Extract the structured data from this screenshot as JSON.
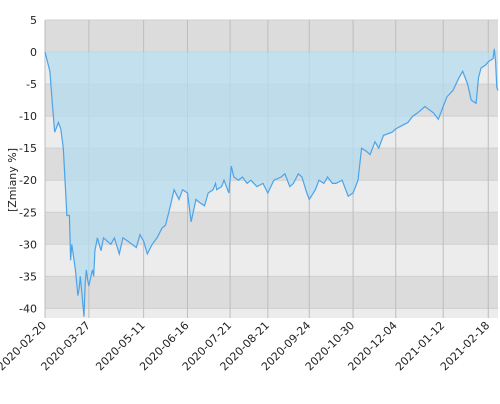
{
  "chart_data": {
    "type": "area",
    "y_label": "[Zmiany %]",
    "x": [
      "2020-02-20",
      "2020-02-24",
      "2020-02-26",
      "2020-02-28",
      "2020-03-02",
      "2020-03-04",
      "2020-03-06",
      "2020-03-09",
      "2020-03-11",
      "2020-03-12",
      "2020-03-13",
      "2020-03-16",
      "2020-03-18",
      "2020-03-19",
      "2020-03-20",
      "2020-03-23",
      "2020-03-24",
      "2020-03-25",
      "2020-03-26",
      "2020-03-27",
      "2020-03-30",
      "2020-03-31",
      "2020-04-01",
      "2020-04-03",
      "2020-04-06",
      "2020-04-08",
      "2020-04-14",
      "2020-04-17",
      "2020-04-21",
      "2020-04-24",
      "2020-04-28",
      "2020-05-05",
      "2020-05-08",
      "2020-05-11",
      "2020-05-14",
      "2020-05-18",
      "2020-05-22",
      "2020-05-26",
      "2020-05-29",
      "2020-06-02",
      "2020-06-05",
      "2020-06-09",
      "2020-06-12",
      "2020-06-16",
      "2020-06-19",
      "2020-06-23",
      "2020-06-26",
      "2020-06-30",
      "2020-07-03",
      "2020-07-07",
      "2020-07-09",
      "2020-07-10",
      "2020-07-14",
      "2020-07-16",
      "2020-07-20",
      "2020-07-22",
      "2020-07-24",
      "2020-07-28",
      "2020-07-31",
      "2020-08-04",
      "2020-08-07",
      "2020-08-12",
      "2020-08-17",
      "2020-08-21",
      "2020-08-26",
      "2020-09-01",
      "2020-09-04",
      "2020-09-08",
      "2020-09-11",
      "2020-09-15",
      "2020-09-18",
      "2020-09-22",
      "2020-09-24",
      "2020-09-29",
      "2020-10-02",
      "2020-10-06",
      "2020-10-09",
      "2020-10-13",
      "2020-10-16",
      "2020-10-21",
      "2020-10-26",
      "2020-10-30",
      "2020-11-03",
      "2020-11-06",
      "2020-11-10",
      "2020-11-13",
      "2020-11-17",
      "2020-11-20",
      "2020-11-24",
      "2020-12-01",
      "2020-12-04",
      "2020-12-09",
      "2020-12-14",
      "2020-12-18",
      "2020-12-22",
      "2020-12-28",
      "2021-01-04",
      "2021-01-08",
      "2021-01-12",
      "2021-01-15",
      "2021-01-20",
      "2021-01-25",
      "2021-01-28",
      "2021-02-01",
      "2021-02-04",
      "2021-02-08",
      "2021-02-10",
      "2021-02-12",
      "2021-02-16",
      "2021-02-18",
      "2021-02-22",
      "2021-02-23",
      "2021-02-24",
      "2021-02-25",
      "2021-02-26"
    ],
    "series": [
      {
        "color": "#4da3e8",
        "fill": "#b5dcef",
        "values": [
          0,
          -3,
          -8,
          -12.5,
          -11,
          -12,
          -15,
          -25.5,
          -25.5,
          -32.5,
          -30,
          -34,
          -38,
          -37,
          -35,
          -41.3,
          -36,
          -34,
          -35.5,
          -36.5,
          -34,
          -35,
          -31,
          -29,
          -31,
          -29,
          -30,
          -29,
          -31.5,
          -29,
          -29.5,
          -30.5,
          -28.5,
          -29.5,
          -31.5,
          -30,
          -29,
          -27.5,
          -27,
          -24,
          -21.5,
          -23,
          -21.5,
          -22,
          -26.5,
          -23,
          -23.5,
          -24,
          -22,
          -21.5,
          -20.5,
          -21.5,
          -21,
          -20,
          -22,
          -17.8,
          -19.5,
          -20,
          -19.5,
          -20.5,
          -20,
          -21,
          -20.5,
          -22,
          -20,
          -19.5,
          -19,
          -21,
          -20.5,
          -19,
          -19.5,
          -22,
          -23,
          -21.5,
          -20,
          -20.5,
          -19.5,
          -20.5,
          -20.5,
          -20,
          -22.5,
          -22,
          -20,
          -15,
          -15.5,
          -16,
          -14,
          -15,
          -13,
          -12.5,
          -12,
          -11.5,
          -11,
          -10,
          -9.5,
          -8.5,
          -9.5,
          -10.5,
          -8.5,
          -7,
          -6,
          -4,
          -3,
          -5,
          -7.5,
          -8,
          -4,
          -2.5,
          -2,
          -1.5,
          -1,
          0.5,
          -1.5,
          -5.5,
          -6
        ]
      }
    ],
    "xlim": [
      "2020-02-20",
      "2021-02-26"
    ],
    "xticks": [
      "2020-02-20",
      "2020-03-27",
      "2020-05-11",
      "2020-06-16",
      "2020-07-21",
      "2020-08-21",
      "2020-09-24",
      "2020-10-30",
      "2020-12-04",
      "2021-01-12",
      "2021-02-18"
    ],
    "ylim": [
      -41.5,
      5
    ],
    "yticks": [
      5,
      0,
      -5,
      -10,
      -15,
      -20,
      -25,
      -30,
      -35,
      -40
    ],
    "grid": true
  }
}
